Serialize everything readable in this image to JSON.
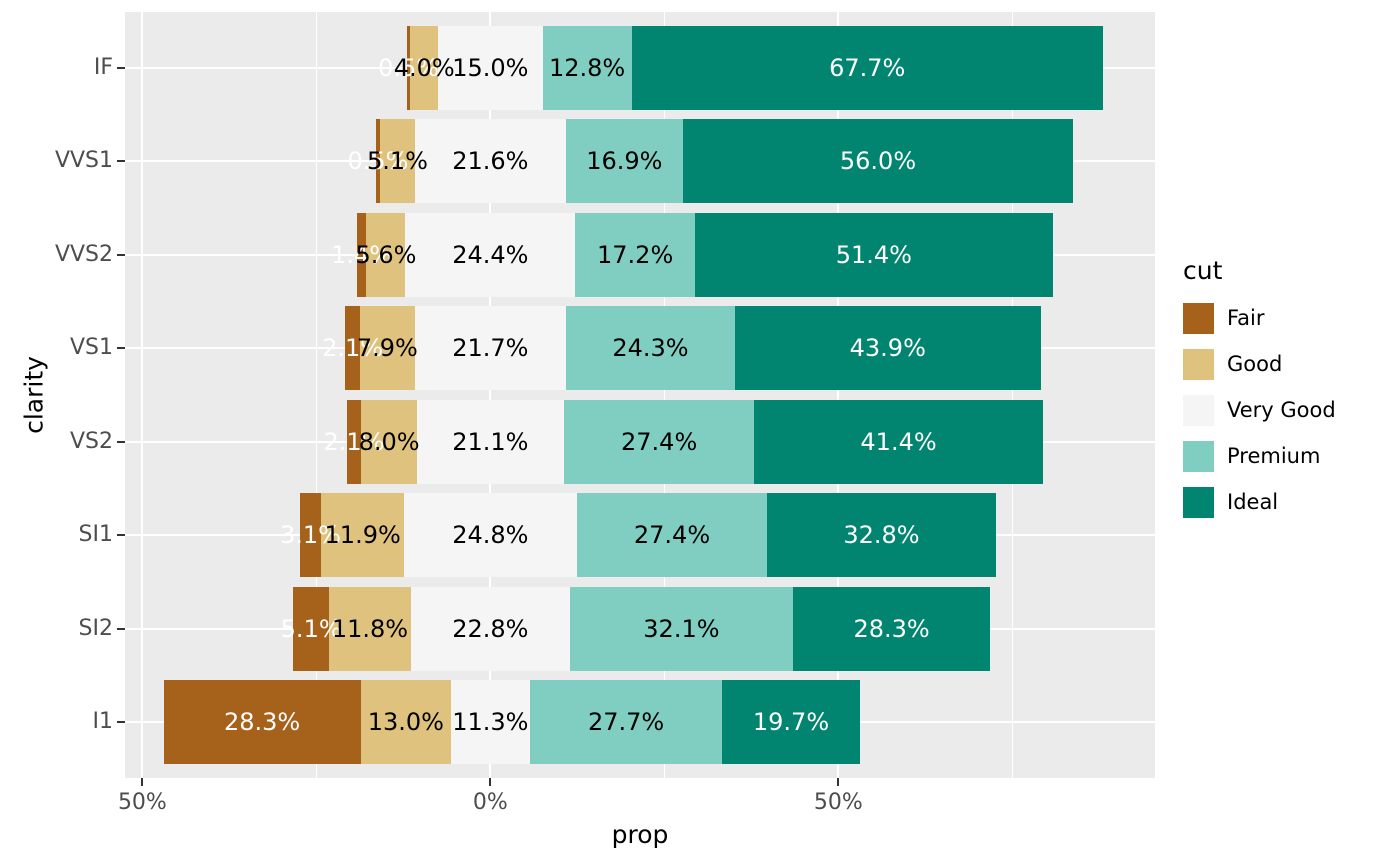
{
  "chart_data": {
    "type": "bar",
    "subtype": "diverging-stacked-horizontal",
    "title": "",
    "xlabel": "prop",
    "ylabel": "clarity",
    "xlim": [
      -52.5,
      95.5
    ],
    "x_ticks": [
      {
        "value": -50,
        "label": "50%"
      },
      {
        "value": 0,
        "label": "0%"
      },
      {
        "value": 50,
        "label": "50%"
      }
    ],
    "x_minor_breaks": [
      -25,
      25,
      75
    ],
    "categories": [
      "IF",
      "VVS1",
      "VVS2",
      "VS1",
      "VS2",
      "SI1",
      "SI2",
      "I1"
    ],
    "center_series": "Very Good",
    "series": [
      {
        "name": "Fair",
        "color": "#a6611a",
        "label_color": "#ffffff",
        "values": [
          0.5,
          0.5,
          1.4,
          2.1,
          2.1,
          3.1,
          5.1,
          28.3
        ],
        "labels": [
          "0.5%",
          "0.5%",
          "1.4%",
          "2.1%",
          "2.1%",
          "3.1%",
          "5.1%",
          "28.3%"
        ]
      },
      {
        "name": "Good",
        "color": "#dfc27d",
        "label_color": "#000000",
        "values": [
          4.0,
          5.1,
          5.6,
          7.9,
          8.0,
          11.9,
          11.8,
          13.0
        ],
        "labels": [
          "4.0%",
          "5.1%",
          "5.6%",
          "7.9%",
          "8.0%",
          "11.9%",
          "11.8%",
          "13.0%"
        ]
      },
      {
        "name": "Very Good",
        "color": "#f5f5f5",
        "label_color": "#000000",
        "values": [
          15.0,
          21.6,
          24.4,
          21.7,
          21.1,
          24.8,
          22.8,
          11.3
        ],
        "labels": [
          "15.0%",
          "21.6%",
          "24.4%",
          "21.7%",
          "21.1%",
          "24.8%",
          "22.8%",
          "11.3%"
        ]
      },
      {
        "name": "Premium",
        "color": "#80cdc1",
        "label_color": "#000000",
        "values": [
          12.8,
          16.9,
          17.2,
          24.3,
          27.4,
          27.4,
          32.1,
          27.7
        ],
        "labels": [
          "12.8%",
          "16.9%",
          "17.2%",
          "24.3%",
          "27.4%",
          "27.4%",
          "32.1%",
          "27.7%"
        ]
      },
      {
        "name": "Ideal",
        "color": "#018571",
        "label_color": "#ffffff",
        "values": [
          67.7,
          56.0,
          51.4,
          43.9,
          41.4,
          32.8,
          28.3,
          19.7
        ],
        "labels": [
          "67.7%",
          "56.0%",
          "51.4%",
          "43.9%",
          "41.4%",
          "32.8%",
          "28.3%",
          "19.7%"
        ]
      }
    ],
    "legend_position": "right",
    "grid": true
  },
  "legend": {
    "title": "cut",
    "items": [
      {
        "label": "Fair",
        "color": "#a6611a"
      },
      {
        "label": "Good",
        "color": "#dfc27d"
      },
      {
        "label": "Very Good",
        "color": "#f5f5f5"
      },
      {
        "label": "Premium",
        "color": "#80cdc1"
      },
      {
        "label": "Ideal",
        "color": "#018571"
      }
    ]
  },
  "colors": {
    "panel_background": "#ebebeb",
    "gridline": "#ffffff",
    "axis_text": "#4d4d4d",
    "axis_title": "#000000",
    "tick_mark": "#333333"
  }
}
